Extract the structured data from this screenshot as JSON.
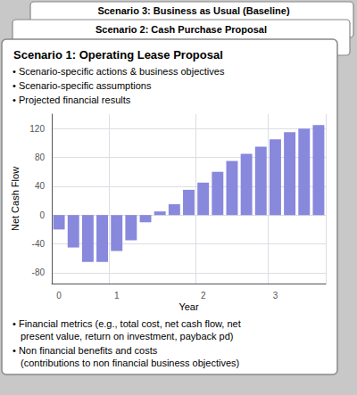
{
  "chart_data": {
    "type": "bar",
    "title": "Scenario 1: Operating Lease Proposal",
    "annotations": [
      "Scenario 3: Business as Usual (Baseline)",
      "Scenario 2: Cash Purchase Proposal",
      "• Scenario-specific actions & business objectives",
      "• Scenario-specific assumptions",
      "• Projected financial results",
      "• Financial metrics (e.g., total cost, net cash flow, net",
      "present value, return on investment, payback pd)",
      "• Non financial benefits and costs",
      "(contributions to non financial business objectives)"
    ],
    "x_label": "Year",
    "y_label": "Net Cash Flow",
    "categories": [
      "0",
      null,
      null,
      null,
      "1",
      null,
      null,
      null,
      null,
      null,
      "2",
      null,
      null,
      null,
      null,
      "3",
      null,
      null,
      null
    ],
    "values": [
      -20,
      -45,
      -65,
      -65,
      -50,
      -35,
      -10,
      5,
      15,
      35,
      45,
      60,
      75,
      85,
      95,
      105,
      115,
      120,
      125
    ],
    "color": "#8888dd",
    "ylim": [
      -95,
      140
    ],
    "yticks": [
      -80,
      -40,
      0,
      40,
      80,
      120
    ],
    "grid": true
  }
}
